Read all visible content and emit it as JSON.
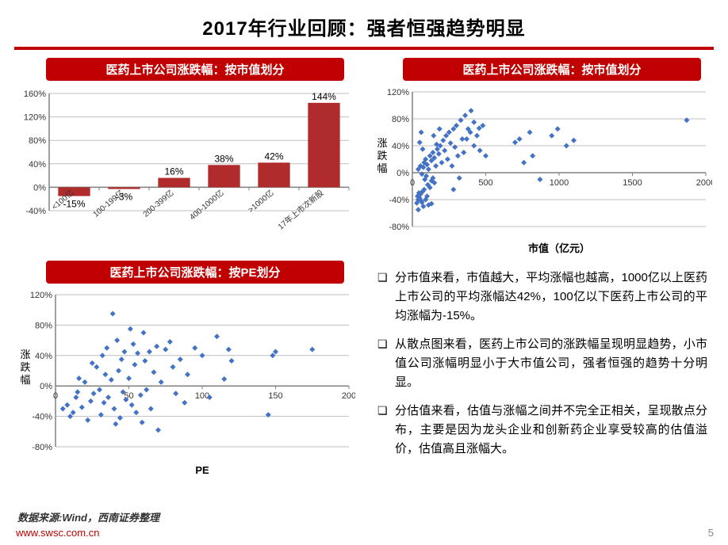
{
  "title": "2017年行业回顾：强者恒强趋势明显",
  "source": "数据来源:Wind，西南证券整理",
  "url": "www.swsc.com.cn",
  "page_number": "5",
  "bar_chart": {
    "header": "医药上市公司涨跌幅：按市值划分",
    "categories": [
      "<100亿",
      "100-199亿",
      "200-399亿",
      "400-1000亿",
      ">1000亿",
      "17年上市次新股"
    ],
    "values": [
      -15,
      -3,
      16,
      38,
      42,
      144
    ],
    "value_labels": [
      "-15%",
      "-3%",
      "16%",
      "38%",
      "42%",
      "144%"
    ],
    "bar_color": "#b02b2b",
    "ylim": [
      -40,
      160
    ],
    "yticks": [
      -40,
      0,
      40,
      80,
      120,
      160
    ],
    "ytick_labels": [
      "-40%",
      "0%",
      "40%",
      "80%",
      "120%",
      "160%"
    ],
    "grid_color": "#bfbfbf",
    "axis_color": "#808080"
  },
  "scatter_mktcap": {
    "header": "医药上市公司涨跌幅：按市值划分",
    "xlabel": "市值（亿元）",
    "ylabel": "涨跌幅",
    "xlim": [
      0,
      2000
    ],
    "xticks": [
      0,
      500,
      1000,
      1500,
      2000
    ],
    "ylim": [
      -80,
      120
    ],
    "yticks": [
      -80,
      -40,
      0,
      40,
      80,
      120
    ],
    "ytick_labels": [
      "-80%",
      "-40%",
      "0%",
      "40%",
      "80%",
      "120%"
    ],
    "marker_color": "#4472c4",
    "marker_size": 7,
    "grid_color": "#bfbfbf",
    "points": [
      [
        30,
        -45
      ],
      [
        40,
        -40
      ],
      [
        35,
        -35
      ],
      [
        50,
        -38
      ],
      [
        60,
        -42
      ],
      [
        45,
        -30
      ],
      [
        55,
        -32
      ],
      [
        70,
        -28
      ],
      [
        80,
        -25
      ],
      [
        65,
        -44
      ],
      [
        90,
        -40
      ],
      [
        100,
        -35
      ],
      [
        110,
        -48
      ],
      [
        85,
        -10
      ],
      [
        95,
        -5
      ],
      [
        105,
        -18
      ],
      [
        120,
        -22
      ],
      [
        130,
        -12
      ],
      [
        140,
        -8
      ],
      [
        150,
        -15
      ],
      [
        40,
        5
      ],
      [
        55,
        10
      ],
      [
        65,
        -2
      ],
      [
        75,
        8
      ],
      [
        80,
        15
      ],
      [
        90,
        20
      ],
      [
        100,
        12
      ],
      [
        110,
        5
      ],
      [
        120,
        25
      ],
      [
        130,
        18
      ],
      [
        140,
        30
      ],
      [
        150,
        22
      ],
      [
        160,
        10
      ],
      [
        170,
        35
      ],
      [
        180,
        28
      ],
      [
        190,
        40
      ],
      [
        200,
        15
      ],
      [
        210,
        48
      ],
      [
        220,
        33
      ],
      [
        230,
        55
      ],
      [
        240,
        20
      ],
      [
        250,
        60
      ],
      [
        260,
        44
      ],
      [
        270,
        10
      ],
      [
        280,
        65
      ],
      [
        290,
        38
      ],
      [
        300,
        70
      ],
      [
        310,
        25
      ],
      [
        330,
        78
      ],
      [
        340,
        50
      ],
      [
        350,
        30
      ],
      [
        360,
        85
      ],
      [
        380,
        65
      ],
      [
        400,
        92
      ],
      [
        420,
        40
      ],
      [
        440,
        55
      ],
      [
        460,
        33
      ],
      [
        480,
        70
      ],
      [
        500,
        25
      ],
      [
        50,
        45
      ],
      [
        60,
        60
      ],
      [
        70,
        35
      ],
      [
        40,
        -55
      ],
      [
        75,
        -50
      ],
      [
        130,
        -46
      ],
      [
        280,
        -25
      ],
      [
        320,
        -8
      ],
      [
        370,
        50
      ],
      [
        395,
        60
      ],
      [
        145,
        55
      ],
      [
        165,
        42
      ],
      [
        185,
        65
      ],
      [
        420,
        75
      ],
      [
        455,
        66
      ],
      [
        700,
        45
      ],
      [
        730,
        50
      ],
      [
        760,
        15
      ],
      [
        800,
        60
      ],
      [
        820,
        25
      ],
      [
        870,
        -10
      ],
      [
        950,
        55
      ],
      [
        990,
        65
      ],
      [
        1050,
        40
      ],
      [
        1100,
        48
      ],
      [
        1870,
        78
      ]
    ]
  },
  "scatter_pe": {
    "header": "医药上市公司涨跌幅：按PE划分",
    "xlabel": "PE",
    "ylabel": "涨跌幅",
    "xlim": [
      0,
      200
    ],
    "xticks": [
      0,
      50,
      100,
      150,
      200
    ],
    "ylim": [
      -80,
      120
    ],
    "yticks": [
      -80,
      -40,
      0,
      40,
      80,
      120
    ],
    "ytick_labels": [
      "-80%",
      "-40%",
      "0%",
      "40%",
      "80%",
      "120%"
    ],
    "marker_color": "#4472c4",
    "marker_size": 7,
    "grid_color": "#bfbfbf",
    "points": [
      [
        5,
        -30
      ],
      [
        8,
        -25
      ],
      [
        10,
        -40
      ],
      [
        12,
        -35
      ],
      [
        14,
        -15
      ],
      [
        15,
        -8
      ],
      [
        16,
        10
      ],
      [
        18,
        -28
      ],
      [
        20,
        5
      ],
      [
        22,
        -45
      ],
      [
        24,
        -20
      ],
      [
        25,
        30
      ],
      [
        26,
        -10
      ],
      [
        28,
        25
      ],
      [
        30,
        -5
      ],
      [
        31,
        -38
      ],
      [
        32,
        40
      ],
      [
        33,
        -22
      ],
      [
        34,
        15
      ],
      [
        35,
        50
      ],
      [
        36,
        -15
      ],
      [
        38,
        8
      ],
      [
        39,
        95
      ],
      [
        40,
        -30
      ],
      [
        41,
        -50
      ],
      [
        42,
        60
      ],
      [
        43,
        20
      ],
      [
        44,
        -42
      ],
      [
        45,
        35
      ],
      [
        46,
        -8
      ],
      [
        47,
        45
      ],
      [
        48,
        -18
      ],
      [
        50,
        10
      ],
      [
        51,
        75
      ],
      [
        52,
        -25
      ],
      [
        53,
        55
      ],
      [
        54,
        28
      ],
      [
        55,
        -35
      ],
      [
        56,
        43
      ],
      [
        58,
        -12
      ],
      [
        59,
        -48
      ],
      [
        60,
        70
      ],
      [
        61,
        33
      ],
      [
        62,
        -5
      ],
      [
        64,
        45
      ],
      [
        65,
        -30
      ],
      [
        67,
        18
      ],
      [
        69,
        52
      ],
      [
        70,
        -58
      ],
      [
        72,
        5
      ],
      [
        75,
        48
      ],
      [
        78,
        58
      ],
      [
        80,
        25
      ],
      [
        82,
        -10
      ],
      [
        85,
        35
      ],
      [
        88,
        -22
      ],
      [
        90,
        15
      ],
      [
        95,
        50
      ],
      [
        100,
        40
      ],
      [
        105,
        -15
      ],
      [
        110,
        65
      ],
      [
        115,
        9
      ],
      [
        118,
        48
      ],
      [
        120,
        33
      ],
      [
        145,
        -38
      ],
      [
        148,
        40
      ],
      [
        150,
        45
      ],
      [
        175,
        48
      ]
    ]
  },
  "bullets": {
    "b1": "分市值来看，市值越大，平均涨幅也越高，1000亿以上医药上市公司的平均涨幅达42%，100亿以下医药上市公司的平均涨幅为-15%。",
    "b2": "从散点图来看，医药上市公司的涨跌幅呈现明显趋势，小市值公司涨幅明显小于大市值公司，强者恒强的趋势十分明显。",
    "b3": "分估值来看，估值与涨幅之间并不完全正相关，呈现散点分布，主要是因为龙头企业和创新药企业享受较高的估值溢价，估值高且涨幅大。"
  }
}
